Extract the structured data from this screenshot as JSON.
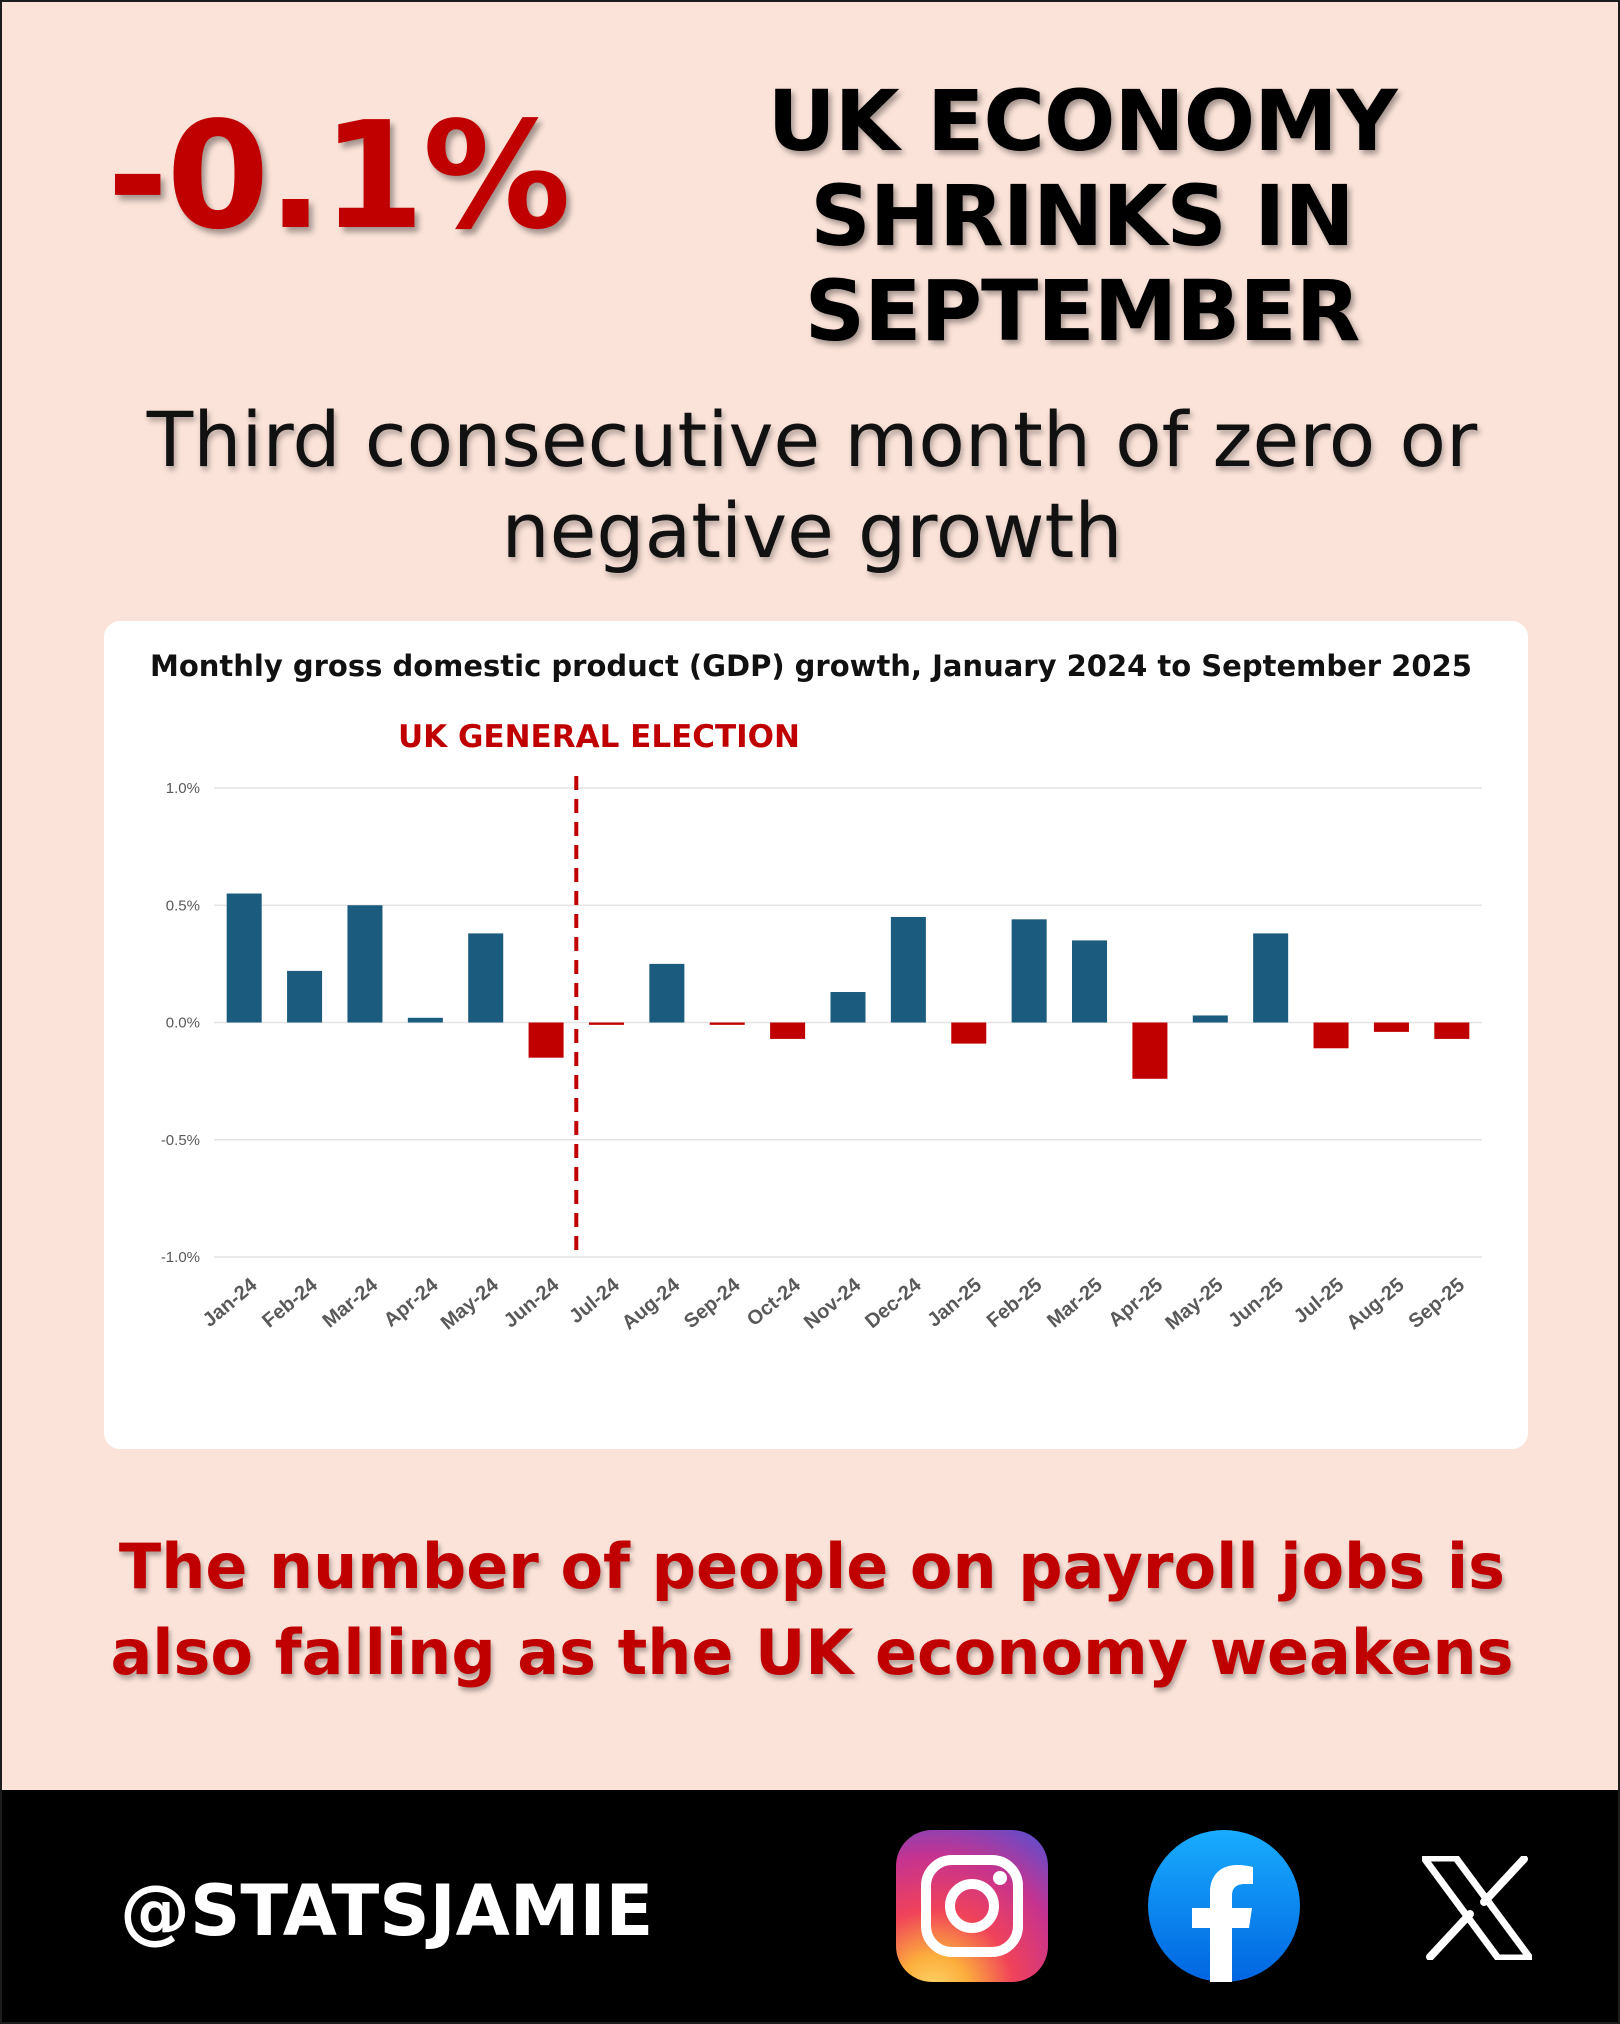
{
  "headline": {
    "number": "-0.1%",
    "title_line1": "UK ECONOMY",
    "title_line2": "SHRINKS IN SEPTEMBER"
  },
  "subheadline": {
    "line1": "Third consecutive month of zero or",
    "line2": "negative growth"
  },
  "chart_data": {
    "type": "bar",
    "title": "Monthly gross domestic product (GDP) growth, January 2024 to September 2025",
    "annotation": "UK GENERAL ELECTION",
    "annotation_after_category": "Jun-24",
    "categories": [
      "Jan-24",
      "Feb-24",
      "Mar-24",
      "Apr-24",
      "May-24",
      "Jun-24",
      "Jul-24",
      "Aug-24",
      "Sep-24",
      "Oct-24",
      "Nov-24",
      "Dec-24",
      "Jan-25",
      "Feb-25",
      "Mar-25",
      "Apr-25",
      "May-25",
      "Jun-25",
      "Jul-25",
      "Aug-25",
      "Sep-25"
    ],
    "values": [
      0.55,
      0.22,
      0.5,
      0.02,
      0.38,
      -0.15,
      -0.01,
      0.25,
      -0.01,
      -0.07,
      0.13,
      0.45,
      -0.09,
      0.44,
      0.35,
      -0.24,
      0.03,
      0.38,
      -0.11,
      -0.04,
      -0.07
    ],
    "ylim": [
      -1.0,
      1.0
    ],
    "yticks": [
      1.0,
      0.5,
      0.0,
      -0.5,
      -1.0
    ],
    "ytick_labels": [
      "1.0%",
      "0.5%",
      "0.0%",
      "-0.5%",
      "-1.0%"
    ],
    "grid": true,
    "colors": {
      "positive": "#1a5b7e",
      "negative": "#c00000",
      "annotation": "#c00000",
      "grid": "#e4e4e4"
    },
    "xlabel": "",
    "ylabel": ""
  },
  "footer": {
    "line1": "The number of people on payroll jobs is",
    "line2": "also falling as the UK economy weakens"
  },
  "social": {
    "handle": "@STATSJAMIE",
    "icons": [
      "instagram-icon",
      "facebook-icon",
      "x-icon"
    ]
  }
}
